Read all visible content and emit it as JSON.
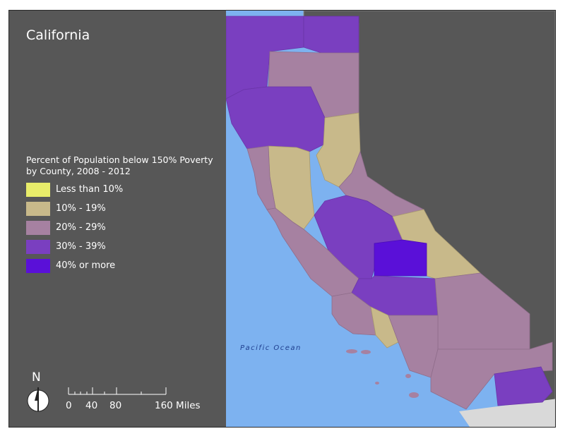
{
  "title": "California",
  "legend": {
    "title": "Percent of Population below 150% Poverty by County, 2008 - 2012",
    "items": [
      {
        "label": "Less than 10%",
        "color": "#e8ec6a"
      },
      {
        "label": "10% - 19%",
        "color": "#c8b98a"
      },
      {
        "label": "20% - 29%",
        "color": "#a681a1"
      },
      {
        "label": "30% - 39%",
        "color": "#7a3fc0"
      },
      {
        "label": "40% or more",
        "color": "#5a10d8"
      }
    ]
  },
  "north_arrow": {
    "label": "N"
  },
  "scale_bar": {
    "labels": [
      "0",
      "40",
      "80",
      "160 Miles"
    ]
  },
  "map": {
    "ocean_label": "Pacific Ocean",
    "colors": {
      "ocean": "#7db2f0",
      "land_outside": "#575757",
      "mexico": "#d9d9d9",
      "state_boundary": "#8c8c8c"
    }
  }
}
